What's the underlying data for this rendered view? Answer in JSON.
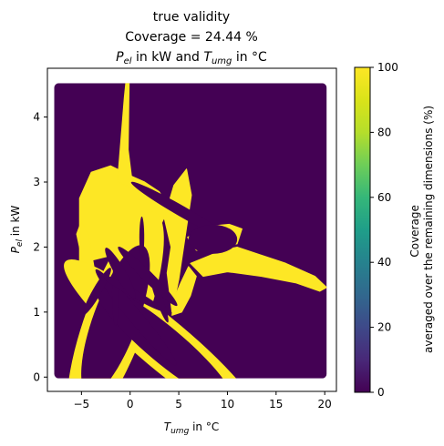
{
  "chart_data": {
    "type": "heatmap",
    "title_line1": "true validity",
    "title_line2": "Coverage = 24.44 %",
    "title_line3": {
      "p_main": "P",
      "p_sub": "el",
      "mid": " in kW and ",
      "t_main": "T",
      "t_sub": "umg",
      "end": " in °C"
    },
    "xlabel": {
      "main": "T",
      "sub": "umg",
      "rest": " in °C"
    },
    "ylabel": {
      "main": "P",
      "sub": "el",
      "rest": " in kW"
    },
    "xlim": [
      -8.5,
      21.2
    ],
    "ylim": [
      -0.22,
      4.75
    ],
    "x_ticks": [
      -5,
      0,
      5,
      10,
      15,
      20
    ],
    "x_tick_labels": [
      "−5",
      "0",
      "5",
      "10",
      "15",
      "20"
    ],
    "y_ticks": [
      0,
      1,
      2,
      3,
      4
    ],
    "y_tick_labels": [
      "0",
      "1",
      "2",
      "3",
      "4"
    ],
    "grid_x_range": [
      -7.8,
      20.2
    ],
    "grid_y_range": [
      -0.02,
      4.52
    ],
    "colormap": "viridis",
    "low_color": "#440154",
    "high_color": "#fde725",
    "valid_regions": [
      {
        "shape": "polygon",
        "points": [
          [
            -5.2,
            1.75
          ],
          [
            -5.2,
            2.75
          ],
          [
            -4,
            3.15
          ],
          [
            -2,
            3.25
          ],
          [
            0,
            3.1
          ],
          [
            1.5,
            3.0
          ],
          [
            3,
            2.85
          ],
          [
            4,
            2.6
          ],
          [
            3,
            2.3
          ],
          [
            1.5,
            2.1
          ],
          [
            0,
            1.95
          ],
          [
            -2.5,
            1.85
          ]
        ]
      },
      {
        "shape": "polygon",
        "points": [
          [
            -1.3,
            3.0
          ],
          [
            -0.6,
            4.3
          ],
          [
            -0.45,
            4.52
          ],
          [
            -0.1,
            4.52
          ],
          [
            -0.2,
            3.5
          ],
          [
            0.3,
            2.9
          ]
        ]
      },
      {
        "shape": "polygon",
        "points": [
          [
            -5,
            2.4
          ],
          [
            -5.5,
            2.2
          ],
          [
            -4.2,
            1.3
          ],
          [
            -3,
            0.7
          ],
          [
            -2.3,
            0.9
          ],
          [
            -3.6,
            1.6
          ],
          [
            -4.3,
            2.2
          ]
        ]
      },
      {
        "shape": "polygon",
        "points": [
          [
            3.5,
            2.45
          ],
          [
            4.5,
            2.95
          ],
          [
            5.8,
            3.2
          ],
          [
            6.3,
            2.8
          ],
          [
            5.7,
            2.2
          ],
          [
            5,
            1.5
          ],
          [
            4.3,
            1.0
          ],
          [
            3.8,
            1.6
          ],
          [
            4.2,
            2.0
          ]
        ]
      },
      {
        "shape": "polygon",
        "points": [
          [
            5.9,
            2.15
          ],
          [
            8,
            2.32
          ],
          [
            10.2,
            2.35
          ],
          [
            11.5,
            2.28
          ],
          [
            11,
            2.05
          ],
          [
            9,
            2.0
          ],
          [
            6.8,
            1.95
          ]
        ]
      },
      {
        "shape": "polygon",
        "points": [
          [
            6.2,
            1.75
          ],
          [
            9.5,
            1.95
          ],
          [
            11,
            2.0
          ],
          [
            13,
            1.9
          ],
          [
            16,
            1.75
          ],
          [
            19,
            1.55
          ],
          [
            20.2,
            1.38
          ],
          [
            19.5,
            1.32
          ],
          [
            17,
            1.45
          ],
          [
            13.5,
            1.55
          ],
          [
            10,
            1.62
          ],
          [
            7.5,
            1.55
          ]
        ]
      },
      {
        "shape": "polygon",
        "points": [
          [
            4.3,
            0.95
          ],
          [
            5.3,
            1.0
          ],
          [
            6.2,
            1.25
          ],
          [
            6.8,
            1.55
          ],
          [
            6.0,
            1.7
          ],
          [
            5.2,
            1.45
          ],
          [
            4.5,
            1.2
          ]
        ]
      },
      {
        "shape": "ellipse",
        "cx": -1.5,
        "cy": 0.88,
        "rx": 3.1,
        "ry": 0.55,
        "angle": -20
      },
      {
        "shape": "ellipse",
        "cx": 3.5,
        "cy": 0.5,
        "rx": 2.6,
        "ry": 0.62,
        "angle": 50
      }
    ],
    "invalid_regions": [
      {
        "shape": "ellipse",
        "cx": -1.5,
        "cy": 0.88,
        "rx": 2.3,
        "ry": 0.38,
        "angle": -20
      },
      {
        "shape": "ellipse",
        "cx": 3.5,
        "cy": 0.5,
        "rx": 1.85,
        "ry": 0.42,
        "angle": 50
      },
      {
        "shape": "ellipse",
        "cx": 0.6,
        "cy": 0.92,
        "rx": 0.7,
        "ry": 0.3,
        "angle": 40
      },
      {
        "shape": "ellipse",
        "cx": -3.4,
        "cy": 1.32,
        "rx": 0.45,
        "ry": 0.13,
        "angle": -30
      },
      {
        "shape": "ellipse",
        "cx": -1.5,
        "cy": 1.3,
        "rx": 0.35,
        "ry": 0.16,
        "angle": 0
      },
      {
        "shape": "ellipse",
        "cx": 0.2,
        "cy": 1.3,
        "rx": 0.4,
        "ry": 0.18,
        "angle": 60
      },
      {
        "shape": "ellipse",
        "cx": 1.8,
        "cy": 1.55,
        "rx": 0.55,
        "ry": 0.2,
        "angle": 45
      },
      {
        "shape": "ellipse",
        "cx": -1.0,
        "cy": 1.6,
        "rx": 0.55,
        "ry": 0.14,
        "angle": 30
      },
      {
        "shape": "ellipse",
        "cx": 3.0,
        "cy": 1.2,
        "rx": 0.35,
        "ry": 0.12,
        "angle": 20
      },
      {
        "shape": "ellipse",
        "cx": 5.3,
        "cy": 2.55,
        "rx": 0.55,
        "ry": 0.28,
        "angle": 60
      },
      {
        "shape": "ellipse",
        "cx": 8.5,
        "cy": 2.12,
        "rx": 2.5,
        "ry": 0.07,
        "angle": 0
      },
      {
        "shape": "ellipse",
        "cx": 1.2,
        "cy": 2.15,
        "rx": 0.25,
        "ry": 0.1,
        "angle": 0
      }
    ],
    "colorbar": {
      "label_line1": "Coverage",
      "label_line2": "averaged over the remaining dimensions (%)",
      "range": [
        0,
        100
      ],
      "ticks": [
        0,
        20,
        40,
        60,
        80,
        100
      ],
      "tick_labels": [
        "0",
        "20",
        "40",
        "60",
        "80",
        "100"
      ]
    }
  }
}
